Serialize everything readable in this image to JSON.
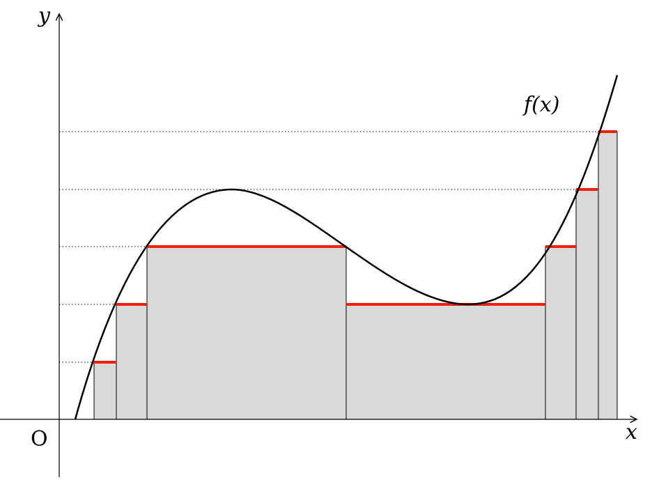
{
  "labels": {
    "y_axis": "y",
    "x_axis": "x",
    "origin": "O",
    "function": "f(x)"
  }
}
